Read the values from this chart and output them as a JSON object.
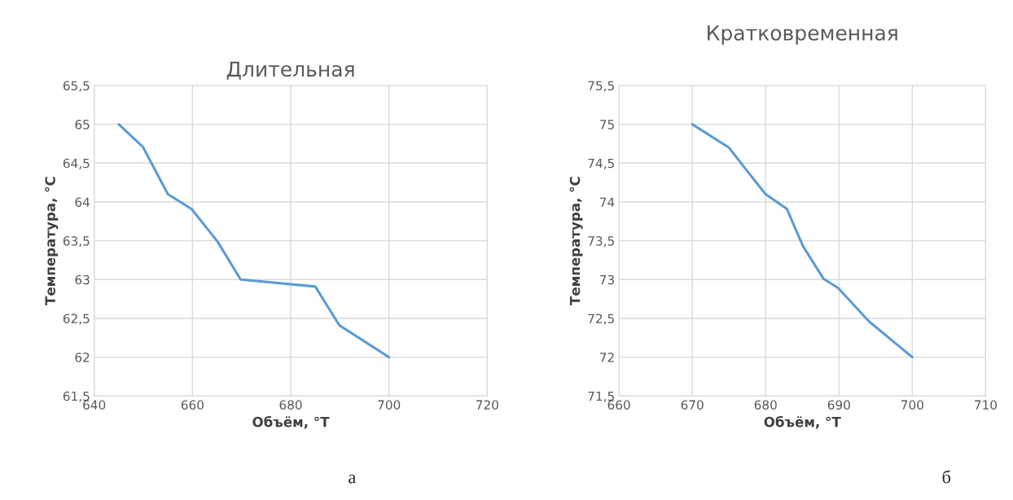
{
  "chart_data": [
    {
      "type": "line",
      "title": "Длительная",
      "xlabel": "Объём, °Т",
      "ylabel": "Температура, °С",
      "series": [
        {
          "color": "#5b9bd5",
          "x": [
            645,
            649.9,
            655,
            659.8,
            665.1,
            669.8,
            685,
            689.9,
            700
          ],
          "values": [
            65,
            64.71,
            64.1,
            63.91,
            63.49,
            63.0,
            62.91,
            62.41,
            62
          ]
        }
      ],
      "xlim": [
        640,
        720
      ],
      "xticks": [
        640,
        660,
        680,
        700,
        720
      ],
      "ylim": [
        61.5,
        65.5
      ],
      "yticks": [
        {
          "value": 61.5,
          "label": "61,5"
        },
        62,
        {
          "value": 62.5,
          "label": "62,5"
        },
        63,
        {
          "value": 63.5,
          "label": "63,5"
        },
        64,
        {
          "value": 64.5,
          "label": "64,5"
        },
        65,
        {
          "value": 65.5,
          "label": "65,5"
        }
      ],
      "grid": true,
      "annotations": [
        "а"
      ]
    },
    {
      "type": "line",
      "title": "Кратковременная",
      "xlabel": "Объём, °Т",
      "ylabel": "Температура, °С",
      "series": [
        {
          "color": "#5b9bd5",
          "x": [
            670,
            675,
            677.8,
            680,
            682.9,
            685.1,
            687.9,
            689.9,
            694.1,
            700
          ],
          "values": [
            75,
            74.7,
            74.36,
            74.1,
            73.91,
            73.43,
            73.01,
            72.89,
            72.46,
            72
          ]
        }
      ],
      "xlim": [
        660,
        710
      ],
      "xticks": [
        660,
        670,
        680,
        690,
        700,
        710
      ],
      "ylim": [
        71.5,
        75.5
      ],
      "yticks": [
        {
          "value": 71.5,
          "label": "71,5"
        },
        72,
        {
          "value": 72.5,
          "label": "72,5"
        },
        73,
        {
          "value": 73.5,
          "label": "73,5"
        },
        74,
        {
          "value": 74.5,
          "label": "74,5"
        },
        75,
        {
          "value": 75.5,
          "label": "75,5"
        }
      ],
      "grid": true,
      "annotations": [
        "б"
      ]
    }
  ]
}
